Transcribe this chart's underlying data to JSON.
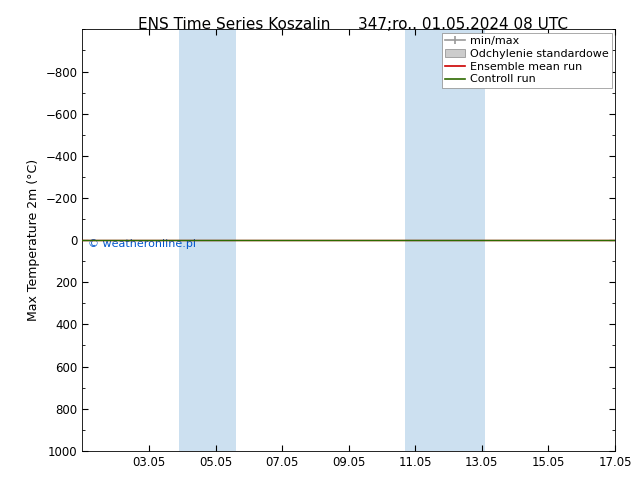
{
  "title_left": "ENS Time Series Koszalin",
  "title_right": "347;ro.. 01.05.2024 08 UTC",
  "ylabel": "Max Temperature 2m (°C)",
  "ylim_bottom": 1000,
  "ylim_top": -1000,
  "yticks": [
    -800,
    -600,
    -400,
    -200,
    0,
    200,
    400,
    600,
    800,
    1000
  ],
  "x_min": 1,
  "x_max": 17,
  "x_tick_labels": [
    "03.05",
    "05.05",
    "07.05",
    "09.05",
    "11.05",
    "13.05",
    "15.05",
    "17.05"
  ],
  "x_tick_positions": [
    3,
    5,
    7,
    9,
    11,
    13,
    15,
    17
  ],
  "shaded_bands": [
    {
      "x_start": 3.9,
      "x_end": 5.6
    },
    {
      "x_start": 10.7,
      "x_end": 13.1
    }
  ],
  "band_color": "#cce0f0",
  "control_run_y": 0,
  "ensemble_mean_y": 0,
  "control_run_color": "#2d6a00",
  "ensemble_mean_color": "#cc0000",
  "minmax_color": "#999999",
  "std_color": "#bbbbbb",
  "copyright_text": "© weatheronline.pl",
  "copyright_color": "#0055cc",
  "legend_entries": [
    "min/max",
    "Odchylenie standardowe",
    "Ensemble mean run",
    "Controll run"
  ],
  "legend_colors_line": [
    "#999999",
    "#bbbbbb",
    "#cc0000",
    "#2d6a00"
  ],
  "bg_color": "#ffffff",
  "plot_bg_color": "#ffffff",
  "title_fontsize": 11,
  "label_fontsize": 9,
  "tick_fontsize": 8.5,
  "legend_fontsize": 8
}
